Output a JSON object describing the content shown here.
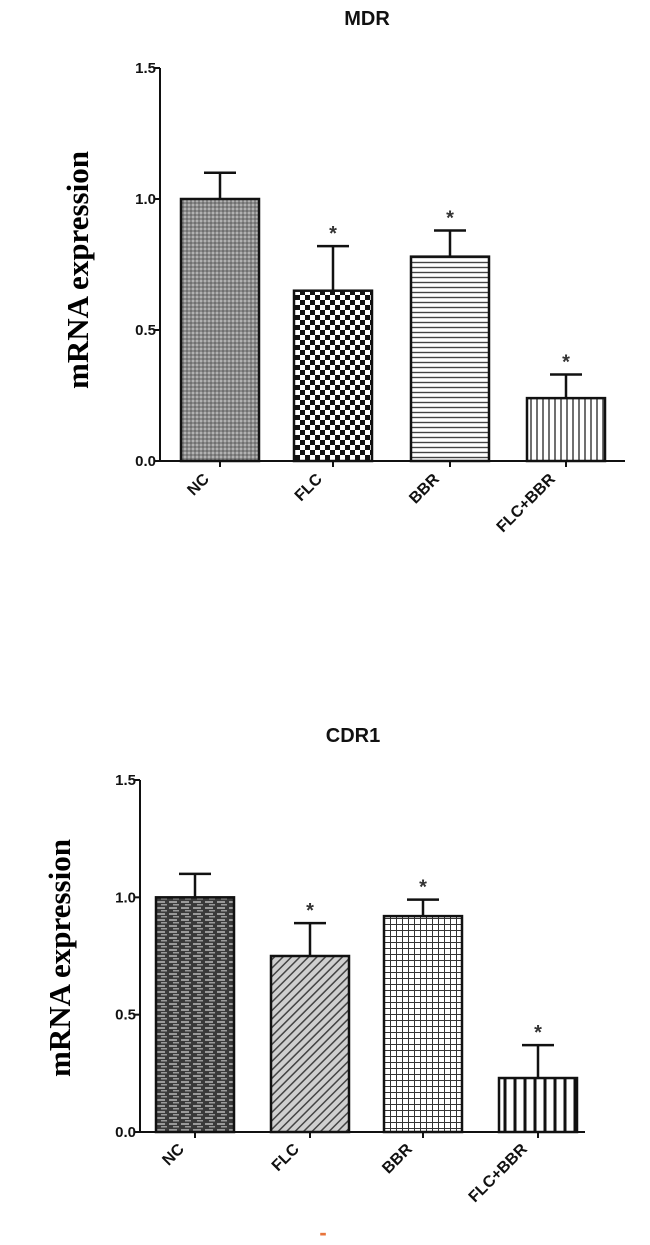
{
  "chart_data": [
    {
      "type": "bar",
      "title": "MDR",
      "ylabel": "mRNA expression",
      "xlabel": "",
      "ylim": [
        0,
        1.5
      ],
      "yticks": [
        "0.0",
        "0.5",
        "1.0",
        "1.5"
      ],
      "categories": [
        "NC",
        "FLC",
        "BBR",
        "FLC+BBR"
      ],
      "values": [
        1.0,
        0.65,
        0.78,
        0.24
      ],
      "errors": [
        0.1,
        0.17,
        0.1,
        0.09
      ],
      "significance": [
        "",
        "*",
        "*",
        "*"
      ],
      "patterns": [
        "dense-dots",
        "checker",
        "horizontal-lines",
        "vertical-lines"
      ],
      "grid": false,
      "legend": "none"
    },
    {
      "type": "bar",
      "title": "CDR1",
      "ylabel": "mRNA expression",
      "xlabel": "",
      "ylim": [
        0,
        1.5
      ],
      "yticks": [
        "0.0",
        "0.5",
        "1.0",
        "1.5"
      ],
      "categories": [
        "NC",
        "FLC",
        "BBR",
        "FLC+BBR"
      ],
      "values": [
        1.0,
        0.75,
        0.92,
        0.23
      ],
      "errors": [
        0.1,
        0.14,
        0.07,
        0.14
      ],
      "significance": [
        "",
        "*",
        "*",
        "*"
      ],
      "patterns": [
        "brick",
        "diagonal",
        "grid",
        "wide-vertical-lines"
      ],
      "grid": false,
      "legend": "none"
    }
  ],
  "footnote": "-"
}
